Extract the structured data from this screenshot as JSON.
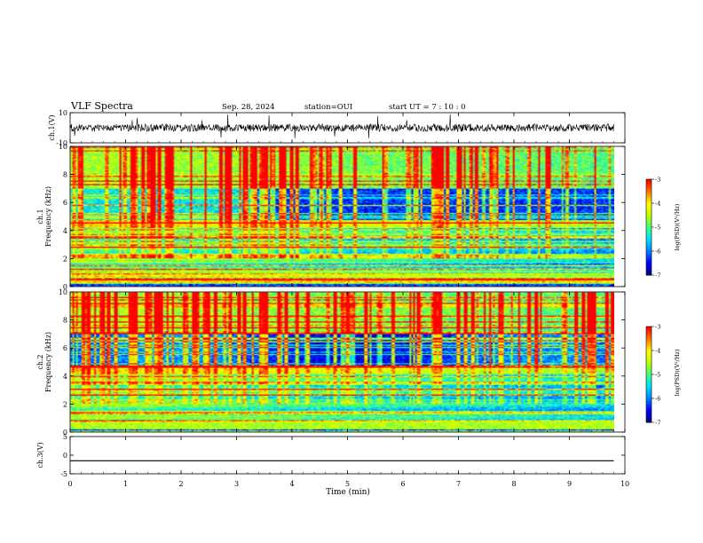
{
  "header": {
    "title": "VLF Spectra",
    "date": "Sep. 28, 2024",
    "station": "station=OUI",
    "start_ut": "start  UT =   7 : 10 : 0"
  },
  "chart_data": [
    {
      "type": "line",
      "panel": "ch1-waveform",
      "ylabel": "ch.1(V)",
      "ylim": [
        -10,
        10
      ],
      "yticks": [
        "10",
        "-10"
      ],
      "xlim": [
        0,
        9.8
      ],
      "series": [
        {
          "mean": 0,
          "noise_amplitude": 2.5
        }
      ]
    },
    {
      "type": "heatmap",
      "panel": "ch1-spectrogram",
      "ylabel": "ch.1\nFrequency (kHz)",
      "ylim": [
        0,
        10
      ],
      "yticks": [
        "0",
        "2",
        "4",
        "6",
        "8",
        "10"
      ],
      "xlim": [
        0,
        9.8
      ],
      "colorbar": {
        "label": "log(PSD)(V²/Hz)",
        "ticks": [
          "-3",
          "-4",
          "-5",
          "-6",
          "-7"
        ],
        "range": [
          -7,
          -3
        ]
      }
    },
    {
      "type": "heatmap",
      "panel": "ch2-spectrogram",
      "ylabel": "ch.2\nFrequency (kHz)",
      "ylim": [
        0,
        10
      ],
      "yticks": [
        "0",
        "2",
        "4",
        "6",
        "8",
        "10"
      ],
      "xlim": [
        0,
        9.8
      ],
      "colorbar": {
        "label": "log(PSD)(V²/Hz)",
        "ticks": [
          "-3",
          "-4",
          "-5",
          "-6",
          "-7"
        ],
        "range": [
          -7,
          -3
        ]
      }
    },
    {
      "type": "line",
      "panel": "ch3-waveform",
      "ylabel": "ch.3(V)",
      "ylim": [
        -5,
        5
      ],
      "yticks": [
        "5",
        "0",
        "-5"
      ],
      "xlim": [
        0,
        9.8
      ],
      "series": [
        {
          "value": -1.5
        }
      ]
    }
  ],
  "xaxis": {
    "label": "Time (min)",
    "ticks": [
      "0",
      "1",
      "2",
      "3",
      "4",
      "5",
      "6",
      "7",
      "8",
      "9",
      "10"
    ],
    "range": [
      0,
      10
    ]
  },
  "colors": {
    "waveform": "#000000",
    "colormap": [
      "#00008b",
      "#0000ff",
      "#0080ff",
      "#00e0ff",
      "#40ff80",
      "#c0ff00",
      "#ffff00",
      "#ff8000",
      "#ff0000",
      "#ffffff"
    ]
  }
}
